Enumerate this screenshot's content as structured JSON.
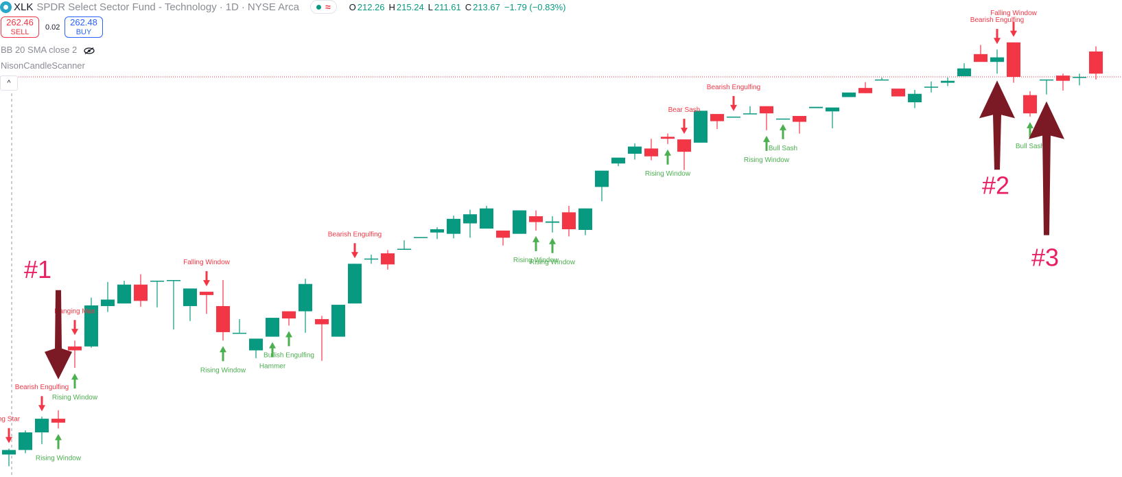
{
  "header": {
    "symbol": "XLK",
    "title": "SPDR Select Sector Fund - Technology",
    "interval": "1D",
    "exchange": "NYSE Arca",
    "sep": "·",
    "ohlc": {
      "o_key": "O",
      "o": "212.26",
      "h_key": "H",
      "h": "215.24",
      "l_key": "L",
      "l": "211.61",
      "c_key": "C",
      "c": "213.67",
      "change": "−1.79 (−0.83%)"
    },
    "status_wave": "≈"
  },
  "trade": {
    "sell_price": "262.46",
    "sell_label": "SELL",
    "spread": "0.02",
    "buy_price": "262.48",
    "buy_label": "BUY"
  },
  "indicators": [
    {
      "label": "BB 20 SMA close 2"
    },
    {
      "label": "NisonCandleScanner"
    }
  ],
  "collapse_icon": "^",
  "colors": {
    "up": "#089981",
    "down": "#f23645",
    "bull_label": "#4caf50",
    "bear_label": "#f23645",
    "annotation_arrow": "#7b1a24",
    "annotation_text": "#e91e63",
    "price_line": "#f23645"
  },
  "annotations": [
    {
      "text": "#1",
      "direction": "down",
      "candle": 3
    },
    {
      "text": "#2",
      "direction": "up",
      "candle": 60
    },
    {
      "text": "#3",
      "direction": "up",
      "candle": 63
    }
  ],
  "chart_data": {
    "type": "candlestick",
    "title": "XLK · 1D",
    "current_price_line": 214.8,
    "candles": [
      [
        156.8,
        157.7,
        155.0,
        157.5
      ],
      [
        157.5,
        160.5,
        157.0,
        160.2
      ],
      [
        160.2,
        162.6,
        158.4,
        162.3
      ],
      [
        162.3,
        163.6,
        160.8,
        161.7
      ],
      [
        173.4,
        174.3,
        170.1,
        172.8
      ],
      [
        173.4,
        180.9,
        173.2,
        179.7
      ],
      [
        179.6,
        183.3,
        178.7,
        180.6
      ],
      [
        180.0,
        183.5,
        180.0,
        182.9
      ],
      [
        182.9,
        184.5,
        179.5,
        180.4
      ],
      [
        183.5,
        183.5,
        179.4,
        183.5
      ],
      [
        183.6,
        183.6,
        176.0,
        183.6
      ],
      [
        179.6,
        182.3,
        177.3,
        182.3
      ],
      [
        181.8,
        181.8,
        178.4,
        181.3
      ],
      [
        179.6,
        183.6,
        174.3,
        175.6
      ],
      [
        175.5,
        177.6,
        175.5,
        175.5
      ],
      [
        172.8,
        174.6,
        171.6,
        174.6
      ],
      [
        174.9,
        177.8,
        174.9,
        177.8
      ],
      [
        178.8,
        178.8,
        176.6,
        177.7
      ],
      [
        178.8,
        183.8,
        175.5,
        183.0
      ],
      [
        177.6,
        178.1,
        171.2,
        176.8
      ],
      [
        174.9,
        179.8,
        174.9,
        179.8
      ],
      [
        180.0,
        186.1,
        180.0,
        186.1
      ],
      [
        186.9,
        187.5,
        186.1,
        186.9
      ],
      [
        187.7,
        188.2,
        185.2,
        186.0
      ],
      [
        188.4,
        189.7,
        188.4,
        188.4
      ],
      [
        190.2,
        190.2,
        190.2,
        190.2
      ],
      [
        190.9,
        191.7,
        189.9,
        191.4
      ],
      [
        190.7,
        193.5,
        190.0,
        193.0
      ],
      [
        192.3,
        194.4,
        190.1,
        193.7
      ],
      [
        191.5,
        195.0,
        191.5,
        194.6
      ],
      [
        191.2,
        191.2,
        188.9,
        190.1
      ],
      [
        190.7,
        194.3,
        190.7,
        194.3
      ],
      [
        193.4,
        194.3,
        191.2,
        192.5
      ],
      [
        192.4,
        193.4,
        190.9,
        192.6
      ],
      [
        194.0,
        195.0,
        190.3,
        191.4
      ],
      [
        191.3,
        194.6,
        190.5,
        194.6
      ],
      [
        197.9,
        200.4,
        195.7,
        200.4
      ],
      [
        201.5,
        202.4,
        201.1,
        202.4
      ],
      [
        203.0,
        204.6,
        202.1,
        204.1
      ],
      [
        203.8,
        205.3,
        202.0,
        202.6
      ],
      [
        205.6,
        206.1,
        204.5,
        205.3
      ],
      [
        205.2,
        205.2,
        200.5,
        203.3
      ],
      [
        204.7,
        209.6,
        204.7,
        209.6
      ],
      [
        209.1,
        209.1,
        206.8,
        208.0
      ],
      [
        208.7,
        208.7,
        208.7,
        208.7
      ],
      [
        209.2,
        210.3,
        209.2,
        209.2
      ],
      [
        210.3,
        210.3,
        206.6,
        209.2
      ],
      [
        208.4,
        208.4,
        208.4,
        208.4
      ],
      [
        208.8,
        208.8,
        206.1,
        207.9
      ],
      [
        210.0,
        210.0,
        210.0,
        210.2
      ],
      [
        209.5,
        209.5,
        206.9,
        210.1
      ],
      [
        211.7,
        212.4,
        211.7,
        212.4
      ],
      [
        213.1,
        214.0,
        212.3,
        212.3
      ],
      [
        214.3,
        214.7,
        214.3,
        214.4
      ],
      [
        213.0,
        213.0,
        211.8,
        211.8
      ],
      [
        210.9,
        212.8,
        210.0,
        212.2
      ],
      [
        213.3,
        214.1,
        212.4,
        213.3
      ],
      [
        213.9,
        214.7,
        213.4,
        214.2
      ],
      [
        214.9,
        216.9,
        214.9,
        216.1
      ],
      [
        218.3,
        219.7,
        217.3,
        217.1
      ],
      [
        217.1,
        219.0,
        215.3,
        217.8
      ],
      [
        220.1,
        220.1,
        213.9,
        214.8
      ],
      [
        212.0,
        212.6,
        208.7,
        209.2
      ],
      [
        214.4,
        214.4,
        212.1,
        214.4
      ],
      [
        215.0,
        215.3,
        212.7,
        214.2
      ],
      [
        214.8,
        215.3,
        213.5,
        214.8
      ],
      [
        218.7,
        219.5,
        214.4,
        215.3
      ]
    ],
    "patterns": [
      {
        "label": "ng Star",
        "side": "bear",
        "candle": 0
      },
      {
        "label": "Bearish Engulfing",
        "side": "bear",
        "candle": 2
      },
      {
        "label": "Rising Window",
        "side": "bull",
        "candle": 3
      },
      {
        "label": "Hanging Man",
        "side": "bear",
        "candle": 4
      },
      {
        "label": "Rising Window",
        "side": "bull",
        "candle": 4
      },
      {
        "label": "Falling Window",
        "side": "bear",
        "candle": 12
      },
      {
        "label": "Rising Window",
        "side": "bull",
        "candle": 13
      },
      {
        "label": "Bullish Engulfing",
        "side": "bull",
        "candle": 17
      },
      {
        "label": "Hammer",
        "side": "bull",
        "candle": 16
      },
      {
        "label": "Bearish Engulfing",
        "side": "bear",
        "candle": 21
      },
      {
        "label": "Rising Window",
        "side": "bull",
        "candle": 32
      },
      {
        "label": "Rising Window",
        "side": "bull",
        "candle": 33
      },
      {
        "label": "Rising Window",
        "side": "bull",
        "candle": 40
      },
      {
        "label": "Bear Sash",
        "side": "bear",
        "candle": 41
      },
      {
        "label": "Bearish Engulfing",
        "side": "bear",
        "candle": 44
      },
      {
        "label": "Rising Window",
        "side": "bull",
        "candle": 46
      },
      {
        "label": "Bull Sash",
        "side": "bull",
        "candle": 47
      },
      {
        "label": "Bearish Engulfing",
        "side": "bear",
        "candle": 60
      },
      {
        "label": "Falling Window",
        "side": "bear",
        "candle": 61
      },
      {
        "label": "Bull Sash",
        "side": "bull",
        "candle": 62
      }
    ]
  }
}
